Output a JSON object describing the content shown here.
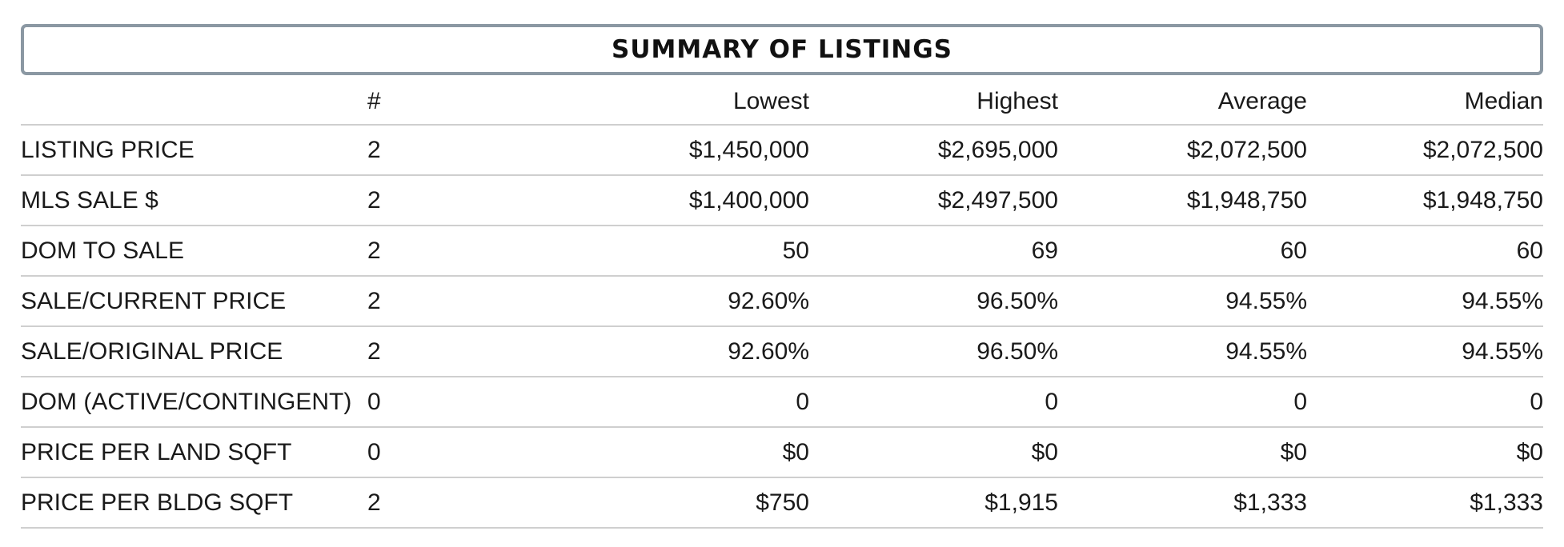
{
  "title": "SUMMARY OF LISTINGS",
  "columns": {
    "label": "",
    "count": "#",
    "lowest": "Lowest",
    "highest": "Highest",
    "average": "Average",
    "median": "Median"
  },
  "rows": [
    {
      "label": "LISTING PRICE",
      "count": "2",
      "lowest": "$1,450,000",
      "highest": "$2,695,000",
      "average": "$2,072,500",
      "median": "$2,072,500"
    },
    {
      "label": "MLS SALE $",
      "count": "2",
      "lowest": "$1,400,000",
      "highest": "$2,497,500",
      "average": "$1,948,750",
      "median": "$1,948,750"
    },
    {
      "label": "DOM TO SALE",
      "count": "2",
      "lowest": "50",
      "highest": "69",
      "average": "60",
      "median": "60"
    },
    {
      "label": "SALE/CURRENT PRICE",
      "count": "2",
      "lowest": "92.60%",
      "highest": "96.50%",
      "average": "94.55%",
      "median": "94.55%"
    },
    {
      "label": "SALE/ORIGINAL PRICE",
      "count": "2",
      "lowest": "92.60%",
      "highest": "96.50%",
      "average": "94.55%",
      "median": "94.55%"
    },
    {
      "label": "DOM (ACTIVE/CONTINGENT)",
      "count": "0",
      "lowest": "0",
      "highest": "0",
      "average": "0",
      "median": "0"
    },
    {
      "label": "PRICE PER LAND SQFT",
      "count": "0",
      "lowest": "$0",
      "highest": "$0",
      "average": "$0",
      "median": "$0"
    },
    {
      "label": "PRICE PER BLDG SQFT",
      "count": "2",
      "lowest": "$750",
      "highest": "$1,915",
      "average": "$1,333",
      "median": "$1,333"
    }
  ]
}
